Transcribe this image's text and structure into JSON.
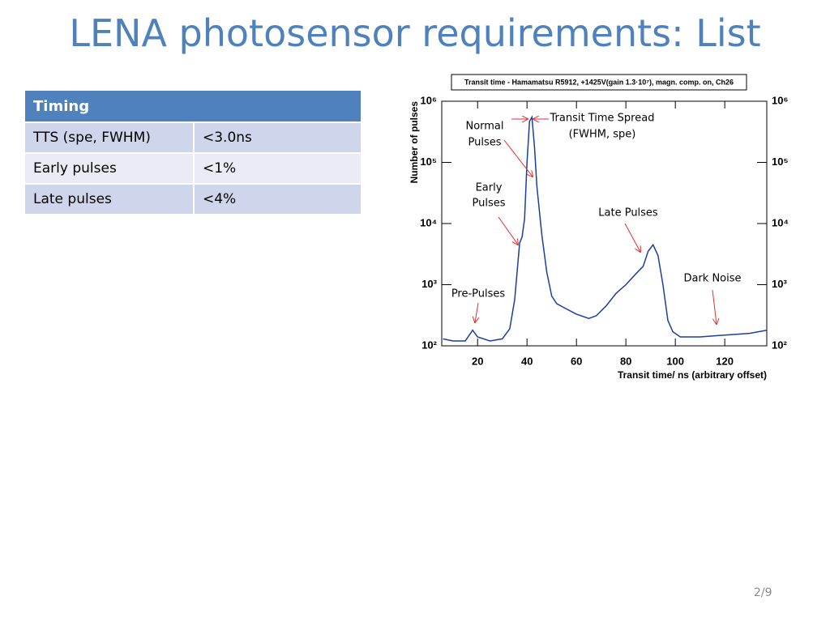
{
  "title": "LENA photosensor requirements: List",
  "table": {
    "header": "Timing",
    "rows": [
      [
        "TTS (spe, FWHM)",
        "<3.0ns"
      ],
      [
        "Early pulses",
        "<1%"
      ],
      [
        "Late pulses",
        "<4%"
      ]
    ]
  },
  "chart_data": {
    "type": "line",
    "title": "Transit time - Hamamatsu R5912, +1425V(gain 1.3·10⁷), magn. comp. on, Ch26",
    "x_label": "Transit time/ ns (arbitrary offset)",
    "y_label": "Number of pulses",
    "log_y": true,
    "xlim": [
      5.5,
      137
    ],
    "xticks": [
      20,
      40,
      60,
      80,
      100,
      120
    ],
    "ylim": [
      100,
      1000000
    ],
    "yticks": [
      {
        "value": 100,
        "label": "10²"
      },
      {
        "value": 1000,
        "label": "10³"
      },
      {
        "value": 10000,
        "label": "10⁴"
      },
      {
        "value": 100000,
        "label": "10⁵"
      },
      {
        "value": 1000000,
        "label": "10⁶"
      }
    ],
    "x": [
      6,
      10,
      15,
      18,
      20,
      25,
      30,
      33,
      35,
      37,
      38,
      39,
      40,
      41,
      42,
      43,
      44,
      46,
      48,
      50,
      52,
      55,
      60,
      65,
      68,
      72,
      76,
      80,
      84,
      87,
      89,
      91,
      93,
      95,
      97,
      99,
      102,
      110,
      120,
      130,
      137
    ],
    "series": [
      {
        "color": "#1c3f9c",
        "values": [
          130,
          120,
          120,
          180,
          140,
          120,
          130,
          190,
          570,
          4800,
          6000,
          12000,
          100000,
          470000,
          550000,
          180000,
          40000,
          6500,
          1600,
          650,
          490,
          420,
          330,
          280,
          310,
          450,
          720,
          1000,
          1500,
          2000,
          3500,
          4500,
          3000,
          1000,
          260,
          170,
          140,
          140,
          150,
          160,
          180
        ]
      }
    ],
    "annotations": [
      {
        "lines": [
          "Normal",
          "Pulses"
        ]
      },
      {
        "lines": [
          "Transit Time Spread",
          "(FWHM, spe)"
        ]
      },
      {
        "lines": [
          "Early",
          "Pulses"
        ]
      },
      {
        "lines": [
          "Late Pulses"
        ]
      },
      {
        "lines": [
          "Pre-Pulses"
        ]
      },
      {
        "lines": [
          "Dark Noise"
        ]
      }
    ]
  },
  "page_number": "2/9"
}
